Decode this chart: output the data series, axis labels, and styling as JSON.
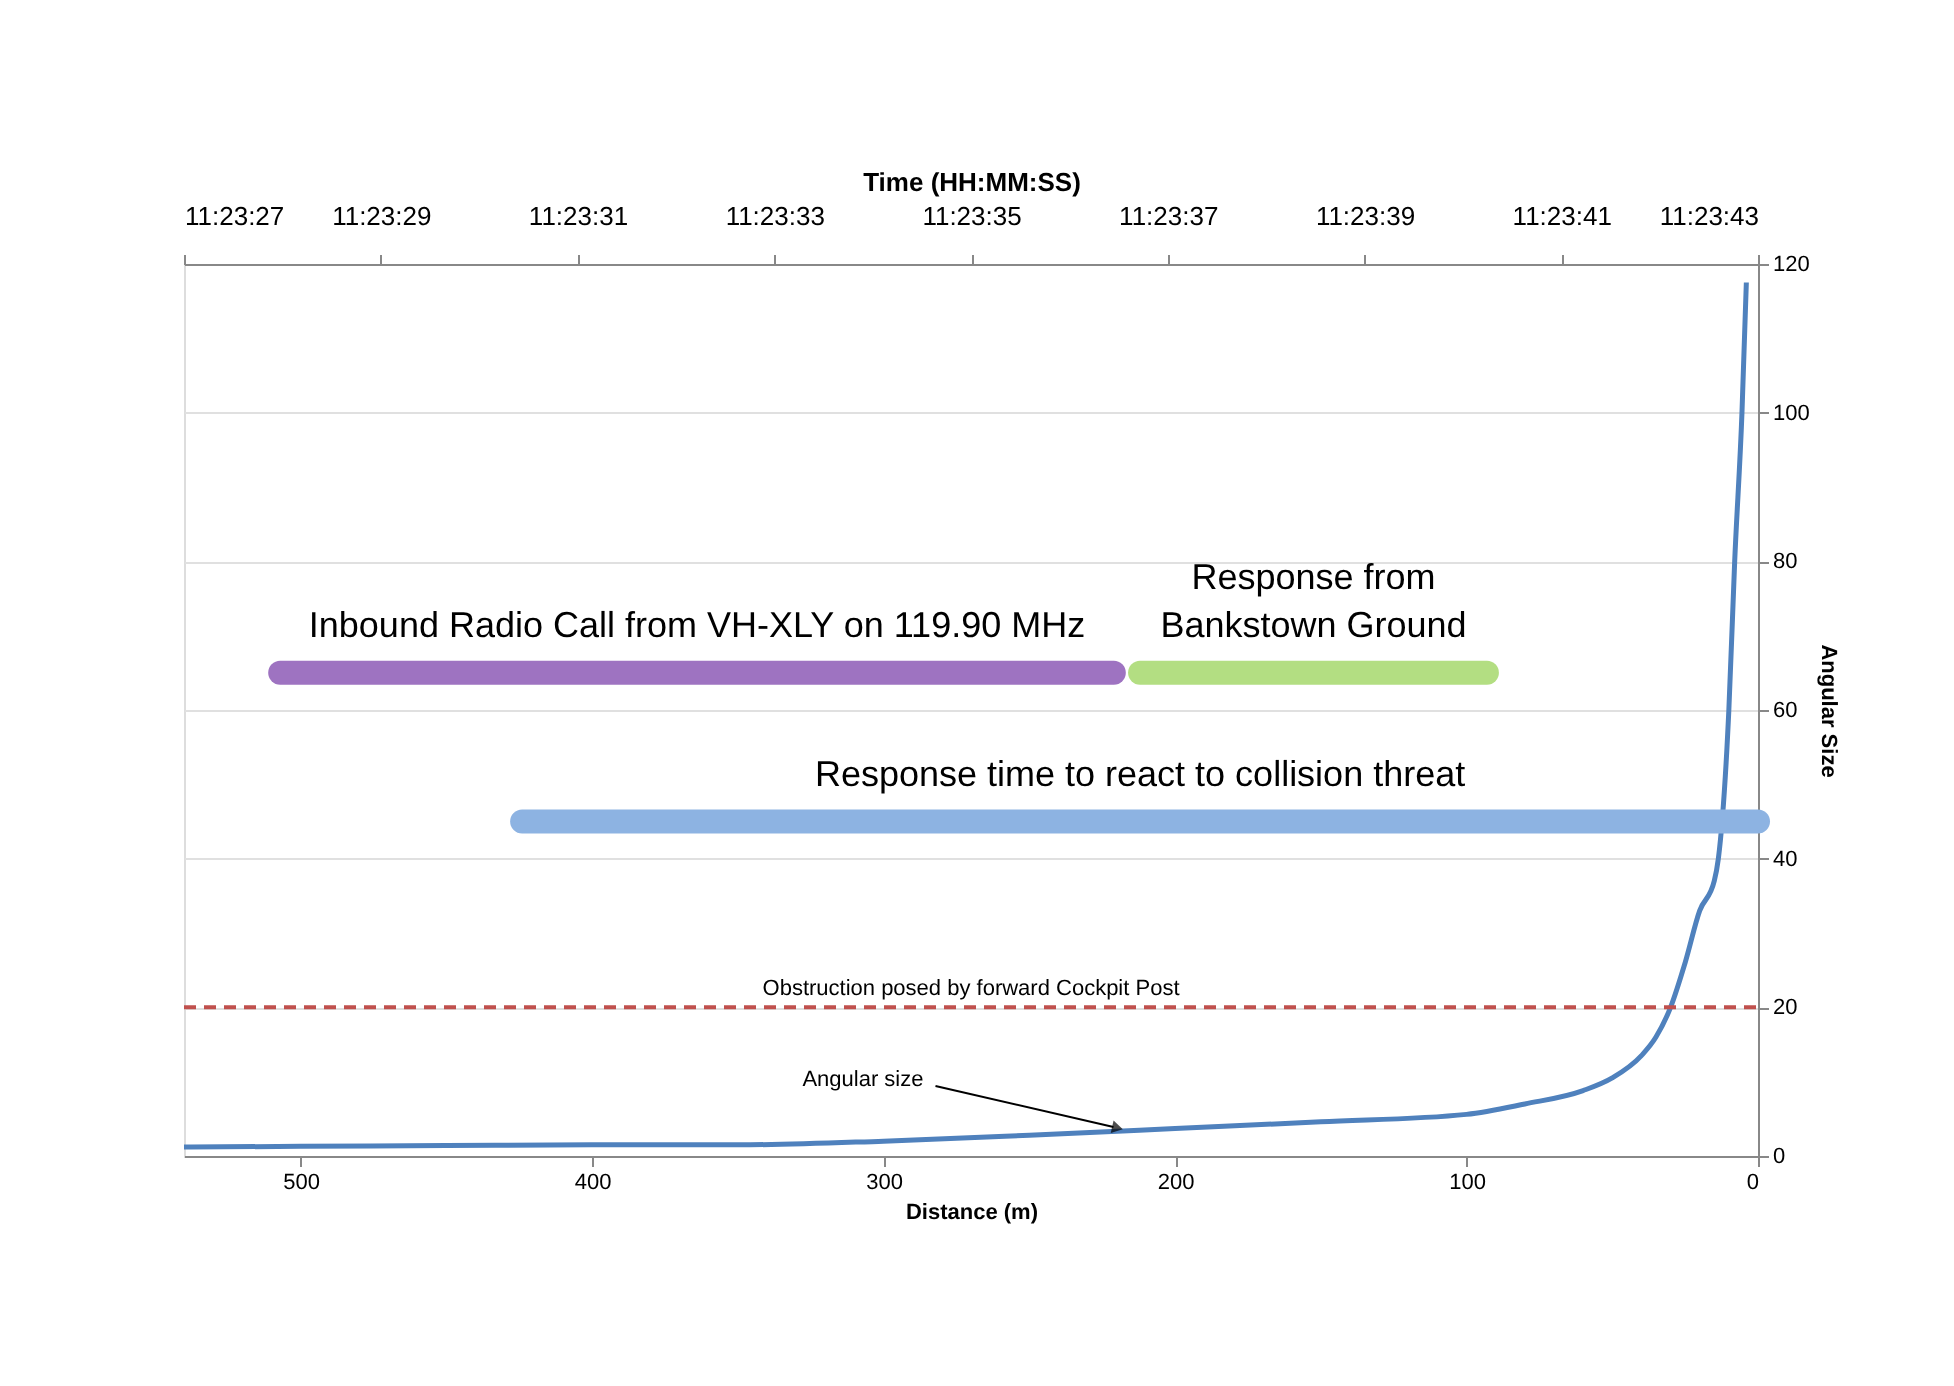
{
  "chart_data": {
    "type": "line",
    "xlabel": "Distance (m)",
    "ylabel": "Angular Size",
    "x2label": "Time (HH:MM:SS)",
    "x": [
      540,
      500,
      450,
      400,
      350,
      300,
      250,
      200,
      150,
      100,
      80,
      60,
      50,
      40,
      35,
      30,
      25,
      20,
      15,
      13.6,
      10,
      8,
      5.5,
      4
    ],
    "series": [
      {
        "color": "#4f81bd",
        "values": [
          1.2,
          1.3,
          1.4,
          1.5,
          1.5,
          2.0,
          2.8,
          3.7,
          4.6,
          5.6,
          7,
          8.8,
          10.5,
          13.5,
          16,
          20,
          26,
          33,
          37,
          40,
          60,
          80,
          100,
          117.5
        ]
      },
      {
        "name": "Inbound Radio Call from VH-XLY on 119.90 MHz",
        "type": "line",
        "color": "#9e73c1",
        "x": [
          507,
          221
        ],
        "values": [
          65,
          65
        ]
      },
      {
        "name": "Response from Bankstown Ground",
        "type": "line",
        "color": "#b3de82",
        "x": [
          212,
          93
        ],
        "values": [
          65,
          65
        ]
      },
      {
        "name": "Response time to react to collision threat",
        "type": "line",
        "color": "#8db3e2",
        "x": [
          424,
          0
        ],
        "values": [
          45,
          45
        ]
      }
    ],
    "xlim": [
      540,
      0
    ],
    "xticks": [
      500,
      400,
      300,
      200,
      100,
      0
    ],
    "ylim": [
      0,
      120
    ],
    "yticks": [
      0,
      20,
      40,
      60,
      80,
      100,
      120
    ],
    "x2lim": [
      11.3908333,
      11.3952778
    ],
    "x2ticks": [
      {
        "value": 11.3908333,
        "label": "11:23:27"
      },
      {
        "value": 11.3913889,
        "label": "11:23:29"
      },
      {
        "value": 11.3919444,
        "label": "11:23:31"
      },
      {
        "value": 11.3925,
        "label": "11:23:33"
      },
      {
        "value": 11.3930556,
        "label": "11:23:35"
      },
      {
        "value": 11.3936111,
        "label": "11:23:37"
      },
      {
        "value": 11.3941667,
        "label": "11:23:39"
      },
      {
        "value": 11.3947222,
        "label": "11:23:41"
      },
      {
        "value": 11.3952778,
        "label": "11:23:43"
      }
    ],
    "ref_lines": [
      {
        "axis": "y",
        "value": 20,
        "label": "Obstruction posed by forward Cockpit Post",
        "color": "#c0504d",
        "line_style": "dashed"
      }
    ],
    "annotations": [
      {
        "text": "Angular size",
        "x": 217,
        "y": 3.5
      }
    ],
    "grid": "y",
    "marker": "none",
    "line_style": "solid"
  }
}
